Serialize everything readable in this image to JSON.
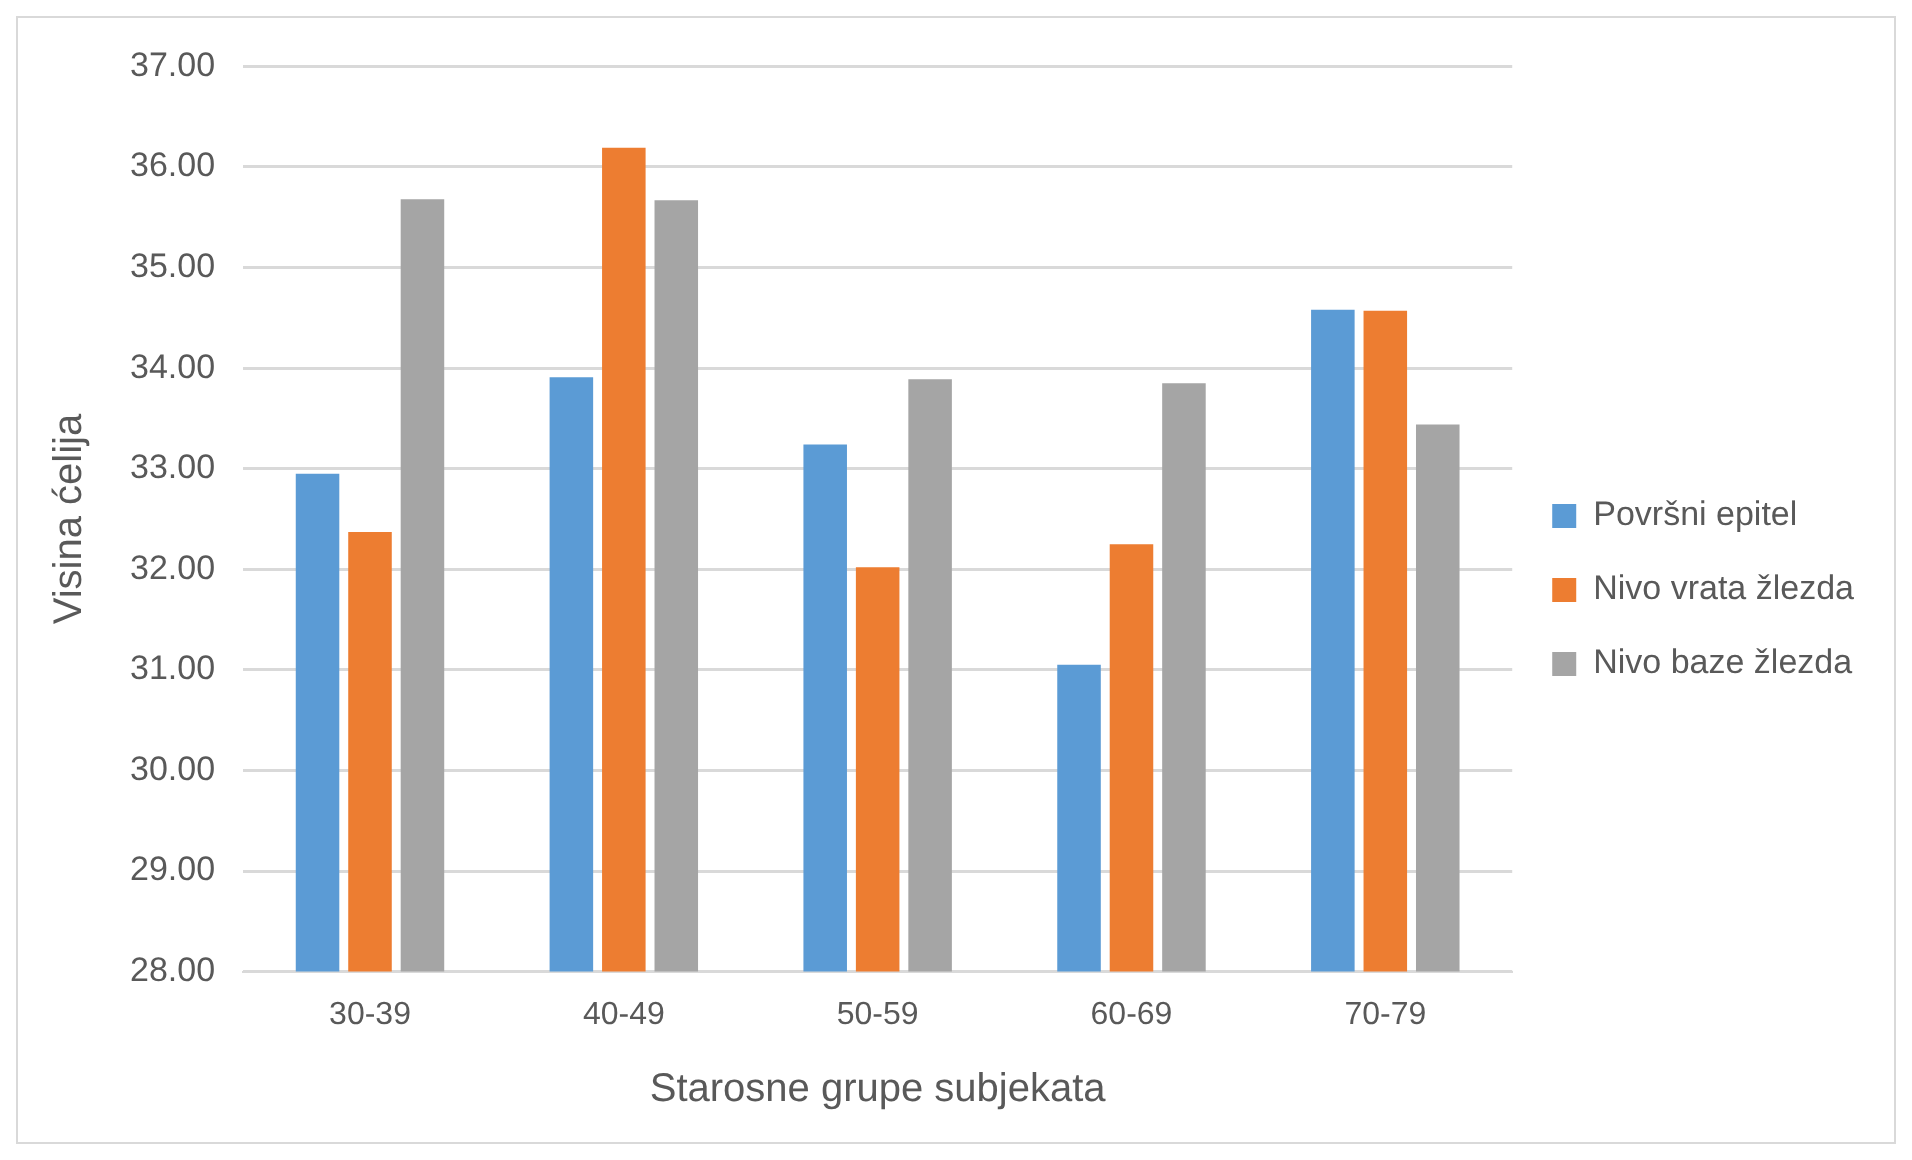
{
  "chart_data": {
    "type": "bar",
    "xlabel": "Starosne grupe subjekata",
    "ylabel": "Visina ćelija",
    "categories": [
      "30-39",
      "40-49",
      "50-59",
      "60-69",
      "70-79"
    ],
    "series": [
      {
        "name": "Površni epitel",
        "color": "#5b9bd5",
        "values": [
          32.95,
          33.91,
          33.24,
          31.05,
          34.58
        ]
      },
      {
        "name": "Nivo vrata žlezda",
        "color": "#ed7d31",
        "values": [
          32.37,
          36.19,
          32.02,
          32.25,
          34.57
        ]
      },
      {
        "name": "Nivo baze žlezda",
        "color": "#a5a5a5",
        "values": [
          35.68,
          35.67,
          33.89,
          33.85,
          33.44
        ]
      }
    ],
    "ylim": [
      28,
      37
    ],
    "yticks": [
      {
        "value": 28,
        "label": "28.00"
      },
      {
        "value": 29,
        "label": "29.00"
      },
      {
        "value": 30,
        "label": "30.00"
      },
      {
        "value": 31,
        "label": "31.00"
      },
      {
        "value": 32,
        "label": "32.00"
      },
      {
        "value": 33,
        "label": "33.00"
      },
      {
        "value": 34,
        "label": "34.00"
      },
      {
        "value": 35,
        "label": "35.00"
      },
      {
        "value": 36,
        "label": "36.00"
      },
      {
        "value": 37,
        "label": "37.00"
      }
    ],
    "grid": "y",
    "legend": "right"
  }
}
